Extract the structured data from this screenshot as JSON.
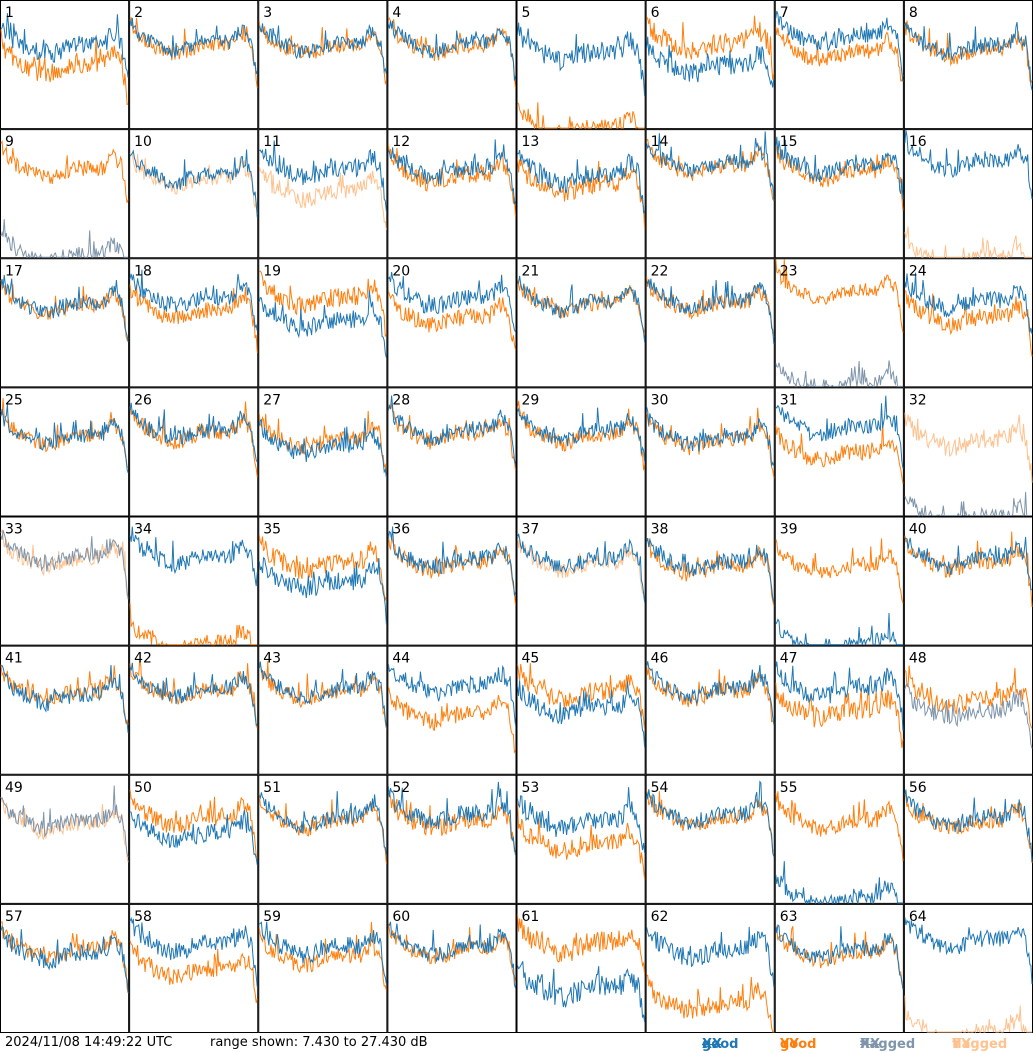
{
  "footer": {
    "timestamp": "2024/11/08 14:49:22 UTC",
    "range_text": "range shown: 7.430 to 27.430 dB"
  },
  "legend": {
    "good_label": "good",
    "flagged_label": "flagged",
    "xx_label": "XX",
    "yy_label": "YY",
    "colors": {
      "good_xx": "#1f77b4",
      "good_yy": "#ff7f0e",
      "flagged_xx": "#7f95ab",
      "flagged_yy": "#ffc28f"
    }
  },
  "chart_data": {
    "type": "line",
    "title": "",
    "ylim": [
      7.43,
      27.43
    ],
    "units": "dB",
    "grid": false,
    "panel_labels": [
      "1",
      "2",
      "3",
      "4",
      "5",
      "6",
      "7",
      "8",
      "9",
      "10",
      "11",
      "12",
      "13",
      "14",
      "15",
      "16",
      "17",
      "18",
      "19",
      "20",
      "21",
      "22",
      "23",
      "24",
      "25",
      "26",
      "27",
      "28",
      "29",
      "30",
      "31",
      "32",
      "33",
      "34",
      "35",
      "36",
      "37",
      "38",
      "39",
      "40",
      "41",
      "42",
      "43",
      "44",
      "45",
      "46",
      "47",
      "48",
      "49",
      "50",
      "51",
      "52",
      "53",
      "54",
      "55",
      "56",
      "57",
      "58",
      "59",
      "60",
      "61",
      "62",
      "63",
      "64"
    ],
    "panels": [
      {
        "xx": "good",
        "yy": "good",
        "xx_level": 20.5,
        "yy_level": 17.5,
        "noise": 1.5
      },
      {
        "xx": "good",
        "yy": "good",
        "xx_level": 21.0,
        "yy_level": 20.6,
        "noise": 1.2
      },
      {
        "xx": "good",
        "yy": "good",
        "xx_level": 20.8,
        "yy_level": 20.5,
        "noise": 1.2
      },
      {
        "xx": "good",
        "yy": "good",
        "xx_level": 21.0,
        "yy_level": 20.6,
        "noise": 1.2
      },
      {
        "xx": "good",
        "yy": "good",
        "xx_level": 19.5,
        "yy_level": 7.5,
        "noise": 1.5
      },
      {
        "xx": "good",
        "yy": "good",
        "xx_level": 17.5,
        "yy_level": 21.0,
        "noise": 1.6
      },
      {
        "xx": "good",
        "yy": "good",
        "xx_level": 22.0,
        "yy_level": 19.5,
        "noise": 1.3
      },
      {
        "xx": "good",
        "yy": "good",
        "xx_level": 20.5,
        "yy_level": 20.0,
        "noise": 1.3
      },
      {
        "xx": "flagged",
        "yy": "good",
        "xx_level": 8.0,
        "yy_level": 21.5,
        "noise": 1.3
      },
      {
        "xx": "good",
        "yy": "flagged",
        "xx_level": 20.5,
        "yy_level": 20.0,
        "noise": 1.2
      },
      {
        "xx": "good",
        "yy": "flagged",
        "xx_level": 21.5,
        "yy_level": 18.0,
        "noise": 1.4
      },
      {
        "xx": "good",
        "yy": "good",
        "xx_level": 21.5,
        "yy_level": 20.5,
        "noise": 1.4
      },
      {
        "xx": "good",
        "yy": "good",
        "xx_level": 20.5,
        "yy_level": 19.0,
        "noise": 1.5
      },
      {
        "xx": "good",
        "yy": "good",
        "xx_level": 22.5,
        "yy_level": 22.0,
        "noise": 1.2
      },
      {
        "xx": "good",
        "yy": "good",
        "xx_level": 22.0,
        "yy_level": 21.0,
        "noise": 1.3
      },
      {
        "xx": "good",
        "yy": "flagged",
        "xx_level": 22.5,
        "yy_level": 7.5,
        "noise": 1.2
      },
      {
        "xx": "good",
        "yy": "good",
        "xx_level": 20.5,
        "yy_level": 20.3,
        "noise": 1.2
      },
      {
        "xx": "good",
        "yy": "good",
        "xx_level": 21.5,
        "yy_level": 19.5,
        "noise": 1.3
      },
      {
        "xx": "good",
        "yy": "good",
        "xx_level": 18.0,
        "yy_level": 21.5,
        "noise": 1.5
      },
      {
        "xx": "good",
        "yy": "good",
        "xx_level": 21.5,
        "yy_level": 18.5,
        "noise": 1.4
      },
      {
        "xx": "good",
        "yy": "good",
        "xx_level": 20.8,
        "yy_level": 20.5,
        "noise": 1.2
      },
      {
        "xx": "good",
        "yy": "good",
        "xx_level": 21.0,
        "yy_level": 20.7,
        "noise": 1.2
      },
      {
        "xx": "flagged",
        "yy": "good",
        "xx_level": 8.0,
        "yy_level": 22.5,
        "noise": 1.0
      },
      {
        "xx": "good",
        "yy": "good",
        "xx_level": 21.0,
        "yy_level": 18.5,
        "noise": 1.4
      },
      {
        "xx": "good",
        "yy": "good",
        "xx_level": 20.0,
        "yy_level": 20.0,
        "noise": 1.1
      },
      {
        "xx": "good",
        "yy": "good",
        "xx_level": 21.0,
        "yy_level": 20.6,
        "noise": 1.3
      },
      {
        "xx": "good",
        "yy": "good",
        "xx_level": 18.5,
        "yy_level": 19.5,
        "noise": 1.2
      },
      {
        "xx": "good",
        "yy": "good",
        "xx_level": 21.0,
        "yy_level": 20.5,
        "noise": 1.3
      },
      {
        "xx": "good",
        "yy": "good",
        "xx_level": 20.8,
        "yy_level": 20.3,
        "noise": 1.3
      },
      {
        "xx": "good",
        "yy": "good",
        "xx_level": 20.0,
        "yy_level": 19.5,
        "noise": 1.3
      },
      {
        "xx": "good",
        "yy": "good",
        "xx_level": 21.5,
        "yy_level": 17.5,
        "noise": 1.4
      },
      {
        "xx": "flagged",
        "yy": "flagged",
        "xx_level": 7.5,
        "yy_level": 19.5,
        "noise": 1.5
      },
      {
        "xx": "flagged",
        "yy": "flagged",
        "xx_level": 21.5,
        "yy_level": 21.0,
        "noise": 1.2
      },
      {
        "xx": "good",
        "yy": "good",
        "xx_level": 21.5,
        "yy_level": 7.8,
        "noise": 1.3
      },
      {
        "xx": "good",
        "yy": "good",
        "xx_level": 17.5,
        "yy_level": 20.5,
        "noise": 1.5
      },
      {
        "xx": "good",
        "yy": "good",
        "xx_level": 21.0,
        "yy_level": 20.5,
        "noise": 1.3
      },
      {
        "xx": "good",
        "yy": "flagged",
        "xx_level": 21.0,
        "yy_level": 20.5,
        "noise": 1.2
      },
      {
        "xx": "good",
        "yy": "good",
        "xx_level": 20.5,
        "yy_level": 20.0,
        "noise": 1.3
      },
      {
        "xx": "good",
        "yy": "good",
        "xx_level": 7.5,
        "yy_level": 20.0,
        "noise": 1.2
      },
      {
        "xx": "good",
        "yy": "good",
        "xx_level": 21.0,
        "yy_level": 20.5,
        "noise": 1.2
      },
      {
        "xx": "good",
        "yy": "good",
        "xx_level": 20.0,
        "yy_level": 20.5,
        "noise": 1.3
      },
      {
        "xx": "good",
        "yy": "good",
        "xx_level": 21.0,
        "yy_level": 20.7,
        "noise": 1.2
      },
      {
        "xx": "good",
        "yy": "good",
        "xx_level": 20.8,
        "yy_level": 20.5,
        "noise": 1.2
      },
      {
        "xx": "good",
        "yy": "good",
        "xx_level": 21.5,
        "yy_level": 17.0,
        "noise": 1.4
      },
      {
        "xx": "good",
        "yy": "good",
        "xx_level": 18.0,
        "yy_level": 20.5,
        "noise": 1.5
      },
      {
        "xx": "good",
        "yy": "good",
        "xx_level": 21.0,
        "yy_level": 20.5,
        "noise": 1.2
      },
      {
        "xx": "good",
        "yy": "good",
        "xx_level": 21.0,
        "yy_level": 17.5,
        "noise": 1.5
      },
      {
        "xx": "flagged",
        "yy": "good",
        "xx_level": 17.5,
        "yy_level": 19.5,
        "noise": 1.5
      },
      {
        "xx": "flagged",
        "yy": "flagged",
        "xx_level": 20.5,
        "yy_level": 20.0,
        "noise": 1.2
      },
      {
        "xx": "good",
        "yy": "good",
        "xx_level": 18.5,
        "yy_level": 21.0,
        "noise": 1.4
      },
      {
        "xx": "good",
        "yy": "good",
        "xx_level": 21.0,
        "yy_level": 20.5,
        "noise": 1.2
      },
      {
        "xx": "good",
        "yy": "good",
        "xx_level": 21.5,
        "yy_level": 20.5,
        "noise": 1.4
      },
      {
        "xx": "good",
        "yy": "good",
        "xx_level": 20.5,
        "yy_level": 17.0,
        "noise": 1.5
      },
      {
        "xx": "good",
        "yy": "good",
        "xx_level": 21.5,
        "yy_level": 21.0,
        "noise": 1.2
      },
      {
        "xx": "good",
        "yy": "good",
        "xx_level": 8.5,
        "yy_level": 20.5,
        "noise": 1.3
      },
      {
        "xx": "good",
        "yy": "good",
        "xx_level": 21.0,
        "yy_level": 20.5,
        "noise": 1.3
      },
      {
        "xx": "good",
        "yy": "good",
        "xx_level": 20.0,
        "yy_level": 20.5,
        "noise": 1.3
      },
      {
        "xx": "good",
        "yy": "good",
        "xx_level": 21.5,
        "yy_level": 17.5,
        "noise": 1.4
      },
      {
        "xx": "good",
        "yy": "good",
        "xx_level": 21.0,
        "yy_level": 19.5,
        "noise": 1.4
      },
      {
        "xx": "good",
        "yy": "good",
        "xx_level": 21.0,
        "yy_level": 20.5,
        "noise": 1.2
      },
      {
        "xx": "good",
        "yy": "good",
        "xx_level": 14.5,
        "yy_level": 21.5,
        "noise": 1.8
      },
      {
        "xx": "good",
        "yy": "good",
        "xx_level": 20.5,
        "yy_level": 12.0,
        "noise": 1.5
      },
      {
        "xx": "good",
        "yy": "good",
        "xx_level": 20.5,
        "yy_level": 20.0,
        "noise": 1.2
      },
      {
        "xx": "good",
        "yy": "flagged",
        "xx_level": 22.0,
        "yy_level": 7.5,
        "noise": 1.2
      }
    ]
  }
}
